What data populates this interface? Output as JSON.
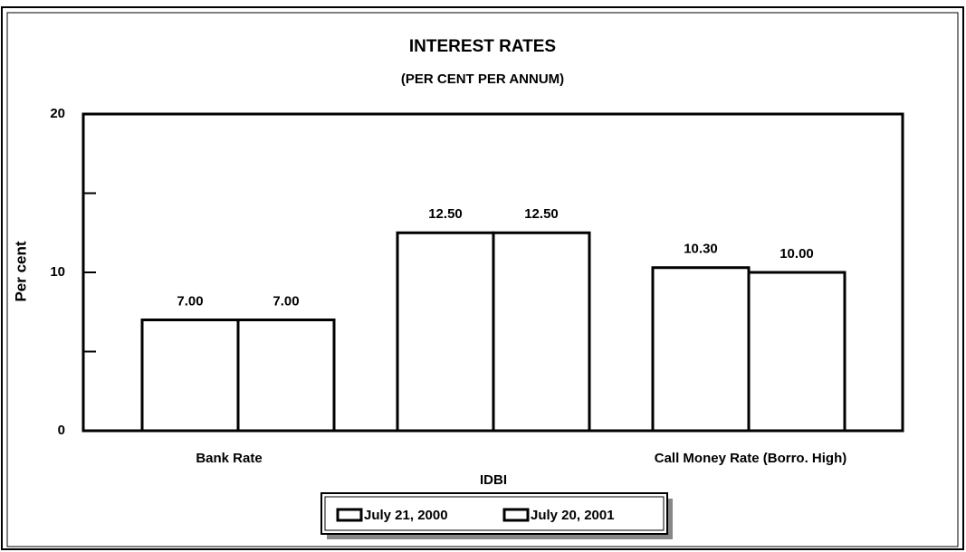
{
  "chart_data": {
    "type": "bar",
    "title": "INTEREST RATES",
    "subtitle": "(PER CENT PER ANNUM)",
    "xlabel": "IDBI",
    "ylabel": "Per cent",
    "categories": [
      "Bank Rate",
      null,
      "Call Money Rate (Borro. High)"
    ],
    "series": [
      {
        "name": "July 21, 2000",
        "color": "#ffffff",
        "values": [
          7,
          12.5,
          10.3
        ],
        "value_labels": [
          "7.00",
          "12.50",
          "10.30"
        ]
      },
      {
        "name": "July 20, 2001",
        "color": "#ffffff",
        "values": [
          7,
          12.5,
          10
        ],
        "value_labels": [
          "7.00",
          "12.50",
          "10.00"
        ]
      }
    ],
    "ylim": [
      0,
      20
    ],
    "yticks": [
      0,
      10,
      20
    ],
    "yticks_minor": [
      5,
      15
    ],
    "grid": false,
    "legend": "bottom"
  }
}
